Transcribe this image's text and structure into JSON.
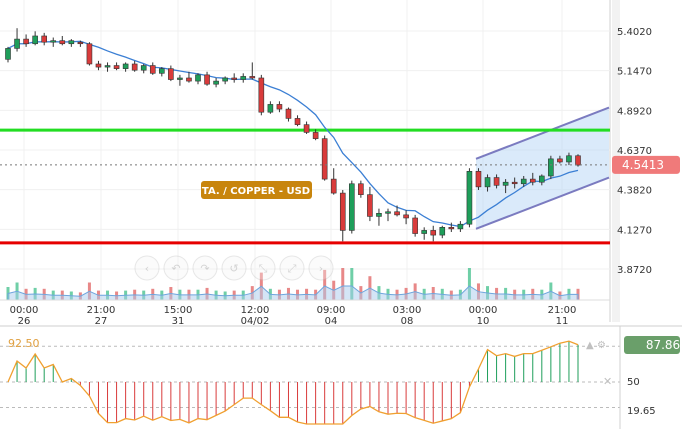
{
  "chart_data": {
    "type": "candlestick",
    "instrument_label": "TA. / COPPER - USD",
    "last_price": "4.5413",
    "y_ticks": [
      "5.4020",
      "5.1470",
      "4.8920",
      "4.6370",
      "4.3820",
      "4.1270",
      "3.8720"
    ],
    "y_range": [
      3.8,
      5.6
    ],
    "x_ticks": [
      {
        "time": "00:00",
        "date": "26"
      },
      {
        "time": "21:00",
        "date": "27"
      },
      {
        "time": "15:00",
        "date": "31"
      },
      {
        "time": "12:00",
        "date": "04/02"
      },
      {
        "time": "09:00",
        "date": "04"
      },
      {
        "time": "03:00",
        "date": "08"
      },
      {
        "time": "00:00",
        "date": "10"
      },
      {
        "time": "21:00",
        "date": "11"
      }
    ],
    "horizontal_levels": [
      {
        "value": 4.765,
        "color": "#22dd22"
      },
      {
        "value": 4.04,
        "color": "#e60000"
      }
    ],
    "candles": [
      [
        5.22,
        5.3,
        5.2,
        5.29
      ],
      [
        5.29,
        5.42,
        5.27,
        5.35
      ],
      [
        5.35,
        5.38,
        5.3,
        5.32
      ],
      [
        5.32,
        5.4,
        5.31,
        5.37
      ],
      [
        5.37,
        5.39,
        5.31,
        5.33
      ],
      [
        5.33,
        5.36,
        5.3,
        5.34
      ],
      [
        5.34,
        5.37,
        5.31,
        5.32
      ],
      [
        5.32,
        5.35,
        5.3,
        5.34
      ],
      [
        5.33,
        5.34,
        5.3,
        5.32
      ],
      [
        5.32,
        5.33,
        5.18,
        5.19
      ],
      [
        5.19,
        5.21,
        5.15,
        5.17
      ],
      [
        5.17,
        5.2,
        5.14,
        5.18
      ],
      [
        5.18,
        5.2,
        5.15,
        5.16
      ],
      [
        5.16,
        5.2,
        5.14,
        5.19
      ],
      [
        5.19,
        5.21,
        5.14,
        5.15
      ],
      [
        5.15,
        5.19,
        5.13,
        5.18
      ],
      [
        5.18,
        5.2,
        5.12,
        5.13
      ],
      [
        5.13,
        5.17,
        5.11,
        5.16
      ],
      [
        5.16,
        5.18,
        5.08,
        5.09
      ],
      [
        5.09,
        5.12,
        5.05,
        5.1
      ],
      [
        5.1,
        5.14,
        5.07,
        5.08
      ],
      [
        5.08,
        5.13,
        5.06,
        5.12
      ],
      [
        5.12,
        5.14,
        5.05,
        5.06
      ],
      [
        5.06,
        5.1,
        5.04,
        5.08
      ],
      [
        5.08,
        5.11,
        5.06,
        5.1
      ],
      [
        5.1,
        5.13,
        5.07,
        5.09
      ],
      [
        5.09,
        5.13,
        5.07,
        5.11
      ],
      [
        5.11,
        5.2,
        5.09,
        5.1
      ],
      [
        5.1,
        5.12,
        4.86,
        4.88
      ],
      [
        4.88,
        4.95,
        4.87,
        4.93
      ],
      [
        4.93,
        4.95,
        4.88,
        4.9
      ],
      [
        4.9,
        4.91,
        4.82,
        4.84
      ],
      [
        4.84,
        4.86,
        4.79,
        4.8
      ],
      [
        4.8,
        4.82,
        4.74,
        4.75
      ],
      [
        4.75,
        4.77,
        4.7,
        4.71
      ],
      [
        4.71,
        4.73,
        4.44,
        4.45
      ],
      [
        4.45,
        4.52,
        4.35,
        4.36
      ],
      [
        4.36,
        4.38,
        4.05,
        4.12
      ],
      [
        4.12,
        4.44,
        4.1,
        4.42
      ],
      [
        4.42,
        4.44,
        4.33,
        4.35
      ],
      [
        4.35,
        4.4,
        4.18,
        4.21
      ],
      [
        4.21,
        4.26,
        4.15,
        4.23
      ],
      [
        4.23,
        4.26,
        4.18,
        4.24
      ],
      [
        4.24,
        4.28,
        4.21,
        4.22
      ],
      [
        4.22,
        4.25,
        4.16,
        4.2
      ],
      [
        4.2,
        4.22,
        4.08,
        4.1
      ],
      [
        4.1,
        4.14,
        4.06,
        4.12
      ],
      [
        4.12,
        4.15,
        4.05,
        4.09
      ],
      [
        4.09,
        4.15,
        4.07,
        4.14
      ],
      [
        4.14,
        4.17,
        4.11,
        4.13
      ],
      [
        4.13,
        4.18,
        4.11,
        4.16
      ],
      [
        4.16,
        4.52,
        4.14,
        4.5
      ],
      [
        4.5,
        4.52,
        4.38,
        4.4
      ],
      [
        4.4,
        4.48,
        4.37,
        4.46
      ],
      [
        4.46,
        4.48,
        4.39,
        4.41
      ],
      [
        4.41,
        4.45,
        4.36,
        4.43
      ],
      [
        4.43,
        4.46,
        4.39,
        4.42
      ],
      [
        4.42,
        4.47,
        4.4,
        4.45
      ],
      [
        4.45,
        4.49,
        4.41,
        4.43
      ],
      [
        4.43,
        4.48,
        4.41,
        4.47
      ],
      [
        4.47,
        4.6,
        4.45,
        4.58
      ],
      [
        4.58,
        4.6,
        4.55,
        4.56
      ],
      [
        4.56,
        4.62,
        4.54,
        4.6
      ],
      [
        4.6,
        4.61,
        4.53,
        4.54
      ]
    ],
    "channel": {
      "lower_start": [
        0.6,
        4.13
      ],
      "lower_end": [
        1.0,
        4.46
      ],
      "width": 0.45
    },
    "oscillator": {
      "left_value": "92.50",
      "current_value": "87.86",
      "y_ticks": [
        "50",
        "19.65"
      ],
      "range": [
        0,
        100
      ],
      "overbought": 92.5,
      "midline": 50,
      "oversold": 19.65
    },
    "colors": {
      "up": "#1e9e5a",
      "down": "#d93b3b",
      "ma": "#3b7fd4",
      "channel_fill": "#bcd9f6",
      "channel_line": "#7b7bc0",
      "badge": "#f07a7a",
      "osc_badge": "#6a9f6a",
      "osc_line": "#f0a030",
      "label_bg": "#c8850d"
    }
  }
}
